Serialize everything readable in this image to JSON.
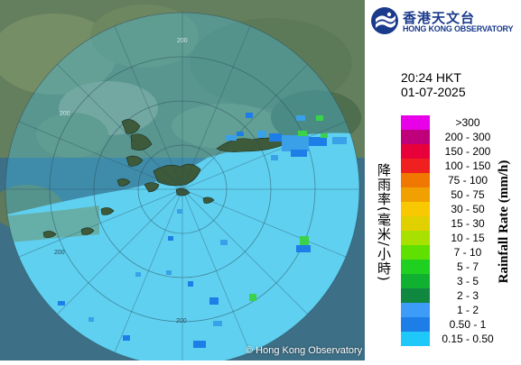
{
  "radar_map": {
    "range_labels": [
      "200",
      "200",
      "200",
      "200"
    ],
    "copyright": "© Hong Kong Observatory",
    "colors": {
      "sea": "#5fd0f0",
      "radar_circle": "#46c4ee",
      "land": "#6a8a5a",
      "echo_light": "#3aa0e8",
      "echo_green": "#3ad24a"
    }
  },
  "logo": {
    "name_zh": "香港天文台",
    "name_en": "HONG KONG OBSERVATORY",
    "icon": "hko-logo-icon"
  },
  "timestamp": {
    "time": "20:24 HKT",
    "date": "01-07-2025"
  },
  "legend": {
    "title_zh": "降雨率(毫米/小時)",
    "title_en": "Rainfall Rate (mm/h)",
    "items": [
      {
        "label": ">300",
        "color": "#e800e8"
      },
      {
        "label": "200 - 300",
        "color": "#c0007a"
      },
      {
        "label": "150 - 200",
        "color": "#e8003a"
      },
      {
        "label": "100 - 150",
        "color": "#f02020"
      },
      {
        "label": "75 - 100",
        "color": "#f07800"
      },
      {
        "label": "50 - 75",
        "color": "#f0a000"
      },
      {
        "label": "30 - 50",
        "color": "#f8c800"
      },
      {
        "label": "15 - 30",
        "color": "#e0d000"
      },
      {
        "label": "10 - 15",
        "color": "#a8e000"
      },
      {
        "label": "7 - 10",
        "color": "#60e000"
      },
      {
        "label": "5 - 7",
        "color": "#20d020"
      },
      {
        "label": "3 - 5",
        "color": "#10b030"
      },
      {
        "label": "2 - 3",
        "color": "#108840"
      },
      {
        "label": "1 - 2",
        "color": "#3c9cf8"
      },
      {
        "label": "0.50 - 1",
        "color": "#1e7ee8"
      },
      {
        "label": "0.15 - 0.50",
        "color": "#1ec8f8"
      }
    ]
  }
}
